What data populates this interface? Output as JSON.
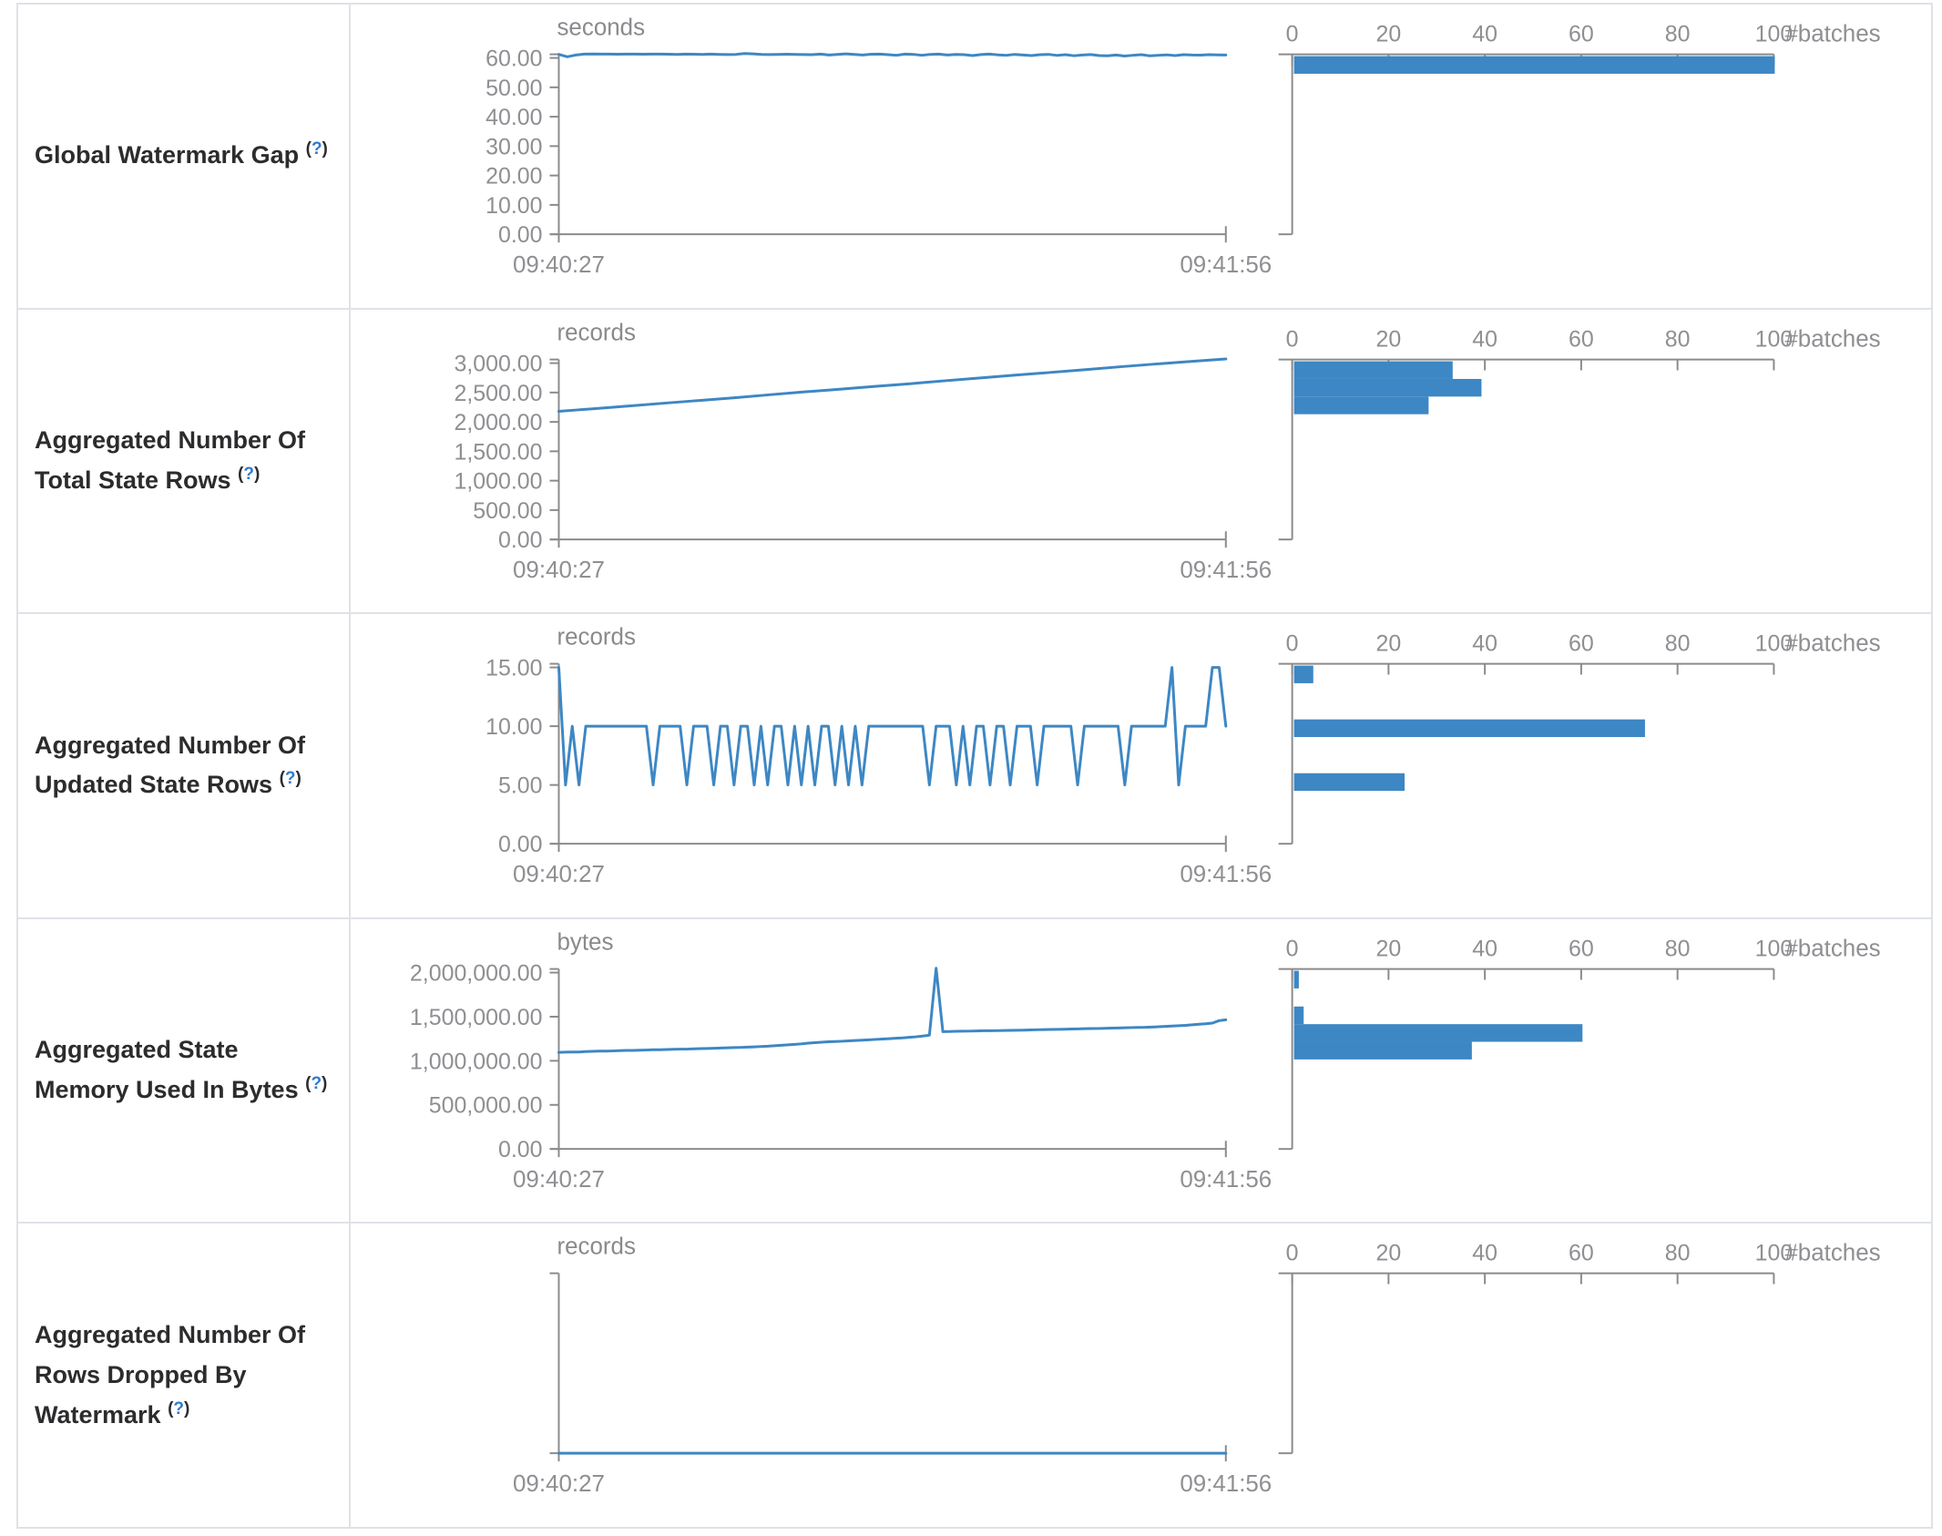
{
  "page": {
    "background": "#ffffff"
  },
  "colors": {
    "accent_blue": "#3d87c4",
    "axis_gray": "#8b8b8b",
    "tick_label_gray": "#8f8f93",
    "metric_label_dark": "#2c2c2e",
    "help_link_blue": "#2e7bd0",
    "border_gray": "#dfe2e7"
  },
  "help_marker": {
    "open": "(",
    "question": "?",
    "close": ")"
  },
  "x_axis_labels": [
    "09:40:27",
    "09:41:56"
  ],
  "histogram_axis": {
    "tick_labels": [
      "0",
      "20",
      "40",
      "60",
      "80",
      "100"
    ],
    "unit_label": "#batches",
    "max": 100
  },
  "chart_data": [
    {
      "metric": "Global Watermark Gap",
      "timeline": {
        "type": "line",
        "unit": "seconds",
        "x_start": "09:40:27",
        "x_end": "09:41:56",
        "y_tick_labels": [
          "60.00",
          "50.00",
          "40.00",
          "30.00",
          "20.00",
          "10.00",
          "0.00"
        ],
        "y_max": 60,
        "values": [
          61.2,
          60.4,
          61.0,
          61.3,
          61.35,
          61.3,
          61.3,
          61.25,
          61.3,
          61.3,
          61.25,
          61.3,
          61.3,
          61.25,
          61.2,
          61.3,
          61.25,
          61.2,
          61.3,
          61.2,
          61.15,
          61.2,
          61.5,
          61.4,
          61.2,
          61.15,
          61.2,
          61.25,
          61.2,
          61.15,
          61.1,
          61.3,
          61.0,
          61.2,
          61.4,
          61.2,
          61.0,
          61.25,
          61.3,
          61.1,
          60.9,
          61.3,
          61.2,
          60.9,
          61.2,
          61.3,
          61.0,
          61.2,
          61.1,
          60.8,
          61.15,
          61.3,
          61.05,
          60.9,
          61.2,
          61.0,
          60.8,
          61.1,
          61.2,
          60.85,
          61.1,
          60.75,
          61.0,
          61.15,
          60.8,
          60.7,
          61.0,
          60.65,
          60.9,
          61.1,
          60.7,
          60.9,
          61.05,
          60.8,
          61.1,
          61.0,
          60.95,
          61.1,
          61.05,
          61.0
        ]
      },
      "histogram": {
        "type": "bar",
        "orientation": "horizontal",
        "unit": "#batches",
        "x_ticks": [
          0,
          20,
          40,
          60,
          80,
          100
        ],
        "bars": [
          {
            "count": 100,
            "bin_center": 61,
            "y_offset": 57
          }
        ]
      }
    },
    {
      "metric": "Aggregated Number Of Total State Rows",
      "timeline": {
        "type": "line",
        "unit": "records",
        "x_start": "09:40:27",
        "x_end": "09:41:56",
        "y_tick_labels": [
          "3,000.00",
          "2,500.00",
          "2,000.00",
          "1,500.00",
          "1,000.00",
          "500.00",
          "0.00"
        ],
        "y_max": 3000,
        "values": [
          2180,
          2225,
          2270,
          2318,
          2365,
          2410,
          2462,
          2510,
          2556,
          2605,
          2650,
          2700,
          2748,
          2795,
          2842,
          2890,
          2938,
          2985,
          3028,
          3070
        ]
      },
      "histogram": {
        "type": "bar",
        "orientation": "horizontal",
        "unit": "#batches",
        "x_ticks": [
          0,
          20,
          40,
          60,
          80,
          100
        ],
        "bars": [
          {
            "count": 33,
            "bin_center": 2920,
            "y_offset": 57
          },
          {
            "count": 39,
            "bin_center": 2625,
            "y_offset": 76.5
          },
          {
            "count": 28,
            "bin_center": 2330,
            "y_offset": 96
          }
        ]
      }
    },
    {
      "metric": "Aggregated Number Of Updated State Rows",
      "timeline": {
        "type": "line",
        "unit": "records",
        "x_start": "09:40:27",
        "x_end": "09:41:56",
        "y_tick_labels": [
          "15.00",
          "10.00",
          "5.00",
          "0.00"
        ],
        "y_max": 15,
        "values": [
          15,
          5,
          10,
          5,
          10,
          10,
          10,
          10,
          10,
          10,
          10,
          10,
          10,
          10,
          5,
          10,
          10,
          10,
          10,
          5,
          10,
          10,
          10,
          5,
          10,
          10,
          5,
          10,
          10,
          5,
          10,
          5,
          10,
          10,
          5,
          10,
          5,
          10,
          5,
          10,
          10,
          5,
          10,
          5,
          10,
          5,
          10,
          10,
          10,
          10,
          10,
          10,
          10,
          10,
          10,
          5,
          10,
          10,
          10,
          5,
          10,
          5,
          10,
          10,
          5,
          10,
          10,
          5,
          10,
          10,
          10,
          5,
          10,
          10,
          10,
          10,
          10,
          5,
          10,
          10,
          10,
          10,
          10,
          10,
          5,
          10,
          10,
          10,
          10,
          10,
          10,
          15,
          5,
          10,
          10,
          10,
          10,
          15,
          15,
          10
        ]
      },
      "histogram": {
        "type": "bar",
        "orientation": "horizontal",
        "unit": "#batches",
        "x_ticks": [
          0,
          20,
          40,
          60,
          80,
          100
        ],
        "bars": [
          {
            "count": 4,
            "bin_center": 15,
            "y_offset": 57
          },
          {
            "count": 73,
            "bin_center": 10,
            "y_offset": 116.5
          },
          {
            "count": 23,
            "bin_center": 5,
            "y_offset": 176
          }
        ]
      }
    },
    {
      "metric": "Aggregated State Memory Used In Bytes",
      "timeline": {
        "type": "line",
        "unit": "bytes",
        "x_start": "09:40:27",
        "x_end": "09:41:56",
        "y_tick_labels": [
          "2,000,000.00",
          "1,500,000.00",
          "1,000,000.00",
          "500,000.00",
          "0.00"
        ],
        "y_max": 2000000,
        "values": [
          1095000,
          1098000,
          1100000,
          1100000,
          1105000,
          1108000,
          1110000,
          1110000,
          1112000,
          1115000,
          1118000,
          1118000,
          1120000,
          1122000,
          1125000,
          1125000,
          1128000,
          1130000,
          1132000,
          1132000,
          1135000,
          1138000,
          1140000,
          1142000,
          1145000,
          1148000,
          1150000,
          1152000,
          1155000,
          1158000,
          1162000,
          1165000,
          1170000,
          1175000,
          1180000,
          1186000,
          1192000,
          1200000,
          1205000,
          1210000,
          1215000,
          1218000,
          1222000,
          1226000,
          1230000,
          1234000,
          1238000,
          1242000,
          1246000,
          1250000,
          1255000,
          1260000,
          1266000,
          1272000,
          1280000,
          1290000,
          2050000,
          1330000,
          1332000,
          1334000,
          1335000,
          1336000,
          1338000,
          1340000,
          1340000,
          1342000,
          1344000,
          1345000,
          1346000,
          1348000,
          1350000,
          1352000,
          1354000,
          1355000,
          1356000,
          1358000,
          1360000,
          1362000,
          1364000,
          1365000,
          1366000,
          1368000,
          1370000,
          1372000,
          1374000,
          1376000,
          1378000,
          1380000,
          1383000,
          1386000,
          1390000,
          1394000,
          1398000,
          1402000,
          1408000,
          1414000,
          1420000,
          1428000,
          1455000,
          1465000
        ]
      },
      "histogram": {
        "type": "bar",
        "orientation": "horizontal",
        "unit": "#batches",
        "x_ticks": [
          0,
          20,
          40,
          60,
          80,
          100
        ],
        "bars": [
          {
            "count": 1,
            "bin_center": 2000000,
            "y_offset": 57
          },
          {
            "count": 2,
            "bin_center": 1480000,
            "y_offset": 96.5
          },
          {
            "count": 60,
            "bin_center": 1290000,
            "y_offset": 116
          },
          {
            "count": 37,
            "bin_center": 1090000,
            "y_offset": 135.5
          }
        ]
      }
    },
    {
      "metric": "Aggregated Number Of Rows Dropped By Watermark",
      "timeline": {
        "type": "line",
        "unit": "records",
        "x_start": "09:40:27",
        "x_end": "09:41:56",
        "y_tick_labels": [],
        "y_max": 1,
        "values": [
          0,
          0,
          0,
          0,
          0,
          0,
          0,
          0,
          0,
          0
        ]
      },
      "histogram": {
        "type": "bar",
        "orientation": "horizontal",
        "unit": "#batches",
        "x_ticks": [
          0,
          20,
          40,
          60,
          80,
          100
        ],
        "bars": []
      }
    }
  ]
}
